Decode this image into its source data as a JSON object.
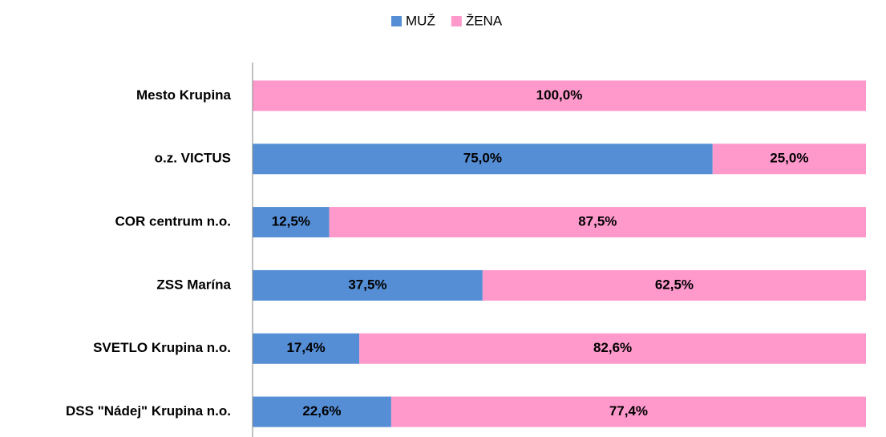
{
  "chart_data": {
    "type": "stacked-bar-horizontal",
    "categories": [
      "Mesto Krupina",
      "o.z. VICTUS",
      "COR centrum n.o.",
      "ZSS Marína",
      "SVETLO Krupina n.o.",
      "DSS \"Nádej\" Krupina n.o."
    ],
    "series": [
      {
        "name": "MUŽ",
        "color": "#558ed5",
        "values": [
          0,
          75,
          12.5,
          37.5,
          17.4,
          22.6
        ],
        "value_labels": [
          null,
          "75,0%",
          "12,5%",
          "37,5%",
          "17,4%",
          "22,6%"
        ]
      },
      {
        "name": "ŽENA",
        "color": "#ff99cc",
        "values": [
          100,
          25,
          87.5,
          62.5,
          82.6,
          77.4
        ],
        "value_labels": [
          "100,0%",
          "25,0%",
          "87,5%",
          "62,5%",
          "82,6%",
          "77,4%"
        ]
      }
    ],
    "legend": "top"
  }
}
